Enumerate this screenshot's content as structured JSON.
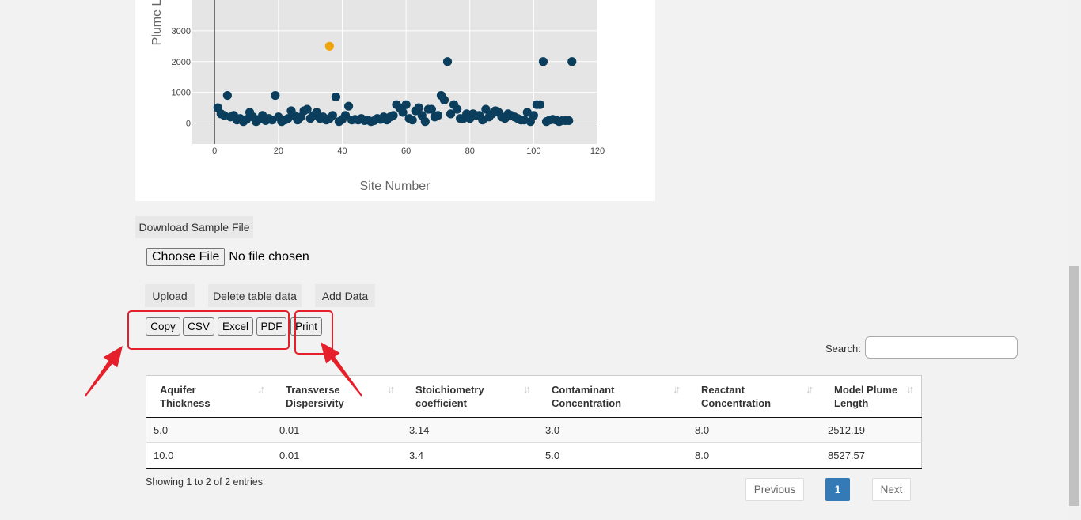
{
  "chart_data": {
    "type": "scatter",
    "title": "",
    "xlabel": "Site Number",
    "ylabel": "Plume L",
    "xlim": [
      -7,
      120
    ],
    "ylim": [
      -680,
      4000
    ],
    "x_ticks": [
      0,
      20,
      40,
      60,
      80,
      100,
      120
    ],
    "y_ticks": [
      0,
      1000,
      2000,
      3000
    ],
    "grid": true,
    "series": [
      {
        "color": "#0a3e5c",
        "points": [
          [
            1,
            500
          ],
          [
            2,
            300
          ],
          [
            3,
            250
          ],
          [
            4,
            900
          ],
          [
            5,
            200
          ],
          [
            6,
            250
          ],
          [
            7,
            100
          ],
          [
            8,
            150
          ],
          [
            9,
            50
          ],
          [
            10,
            120
          ],
          [
            11,
            350
          ],
          [
            12,
            200
          ],
          [
            13,
            50
          ],
          [
            14,
            120
          ],
          [
            15,
            250
          ],
          [
            16,
            80
          ],
          [
            17,
            150
          ],
          [
            18,
            100
          ],
          [
            19,
            900
          ],
          [
            20,
            200
          ],
          [
            21,
            50
          ],
          [
            22,
            100
          ],
          [
            23,
            150
          ],
          [
            24,
            400
          ],
          [
            25,
            250
          ],
          [
            26,
            100
          ],
          [
            27,
            200
          ],
          [
            28,
            400
          ],
          [
            29,
            450
          ],
          [
            30,
            150
          ],
          [
            31,
            250
          ],
          [
            32,
            350
          ],
          [
            33,
            150
          ],
          [
            34,
            200
          ],
          [
            35,
            100
          ],
          [
            36,
            150
          ],
          [
            37,
            250
          ],
          [
            38,
            850
          ],
          [
            39,
            50
          ],
          [
            40,
            120
          ],
          [
            41,
            250
          ],
          [
            42,
            550
          ],
          [
            43,
            100
          ],
          [
            44,
            120
          ],
          [
            45,
            100
          ],
          [
            46,
            150
          ],
          [
            47,
            80
          ],
          [
            48,
            100
          ],
          [
            49,
            50
          ],
          [
            50,
            80
          ],
          [
            51,
            150
          ],
          [
            52,
            120
          ],
          [
            53,
            200
          ],
          [
            54,
            100
          ],
          [
            55,
            200
          ],
          [
            56,
            250
          ],
          [
            57,
            600
          ],
          [
            58,
            500
          ],
          [
            59,
            350
          ],
          [
            60,
            600
          ],
          [
            61,
            150
          ],
          [
            62,
            100
          ],
          [
            63,
            400
          ],
          [
            64,
            500
          ],
          [
            65,
            250
          ],
          [
            66,
            50
          ],
          [
            67,
            450
          ],
          [
            68,
            450
          ],
          [
            69,
            200
          ],
          [
            70,
            250
          ],
          [
            71,
            900
          ],
          [
            72,
            750
          ],
          [
            73,
            2000
          ],
          [
            74,
            300
          ],
          [
            75,
            600
          ],
          [
            76,
            450
          ],
          [
            77,
            150
          ],
          [
            78,
            150
          ],
          [
            79,
            300
          ],
          [
            80,
            150
          ],
          [
            81,
            300
          ],
          [
            82,
            250
          ],
          [
            83,
            250
          ],
          [
            84,
            100
          ],
          [
            85,
            450
          ],
          [
            86,
            200
          ],
          [
            87,
            300
          ],
          [
            88,
            400
          ],
          [
            89,
            350
          ],
          [
            90,
            200
          ],
          [
            91,
            150
          ],
          [
            92,
            300
          ],
          [
            93,
            250
          ],
          [
            94,
            200
          ],
          [
            95,
            150
          ],
          [
            96,
            100
          ],
          [
            97,
            100
          ],
          [
            98,
            350
          ],
          [
            99,
            50
          ],
          [
            100,
            250
          ],
          [
            101,
            600
          ],
          [
            102,
            600
          ],
          [
            103,
            2000
          ],
          [
            104,
            50
          ],
          [
            105,
            100
          ],
          [
            106,
            120
          ],
          [
            107,
            100
          ],
          [
            108,
            50
          ],
          [
            109,
            80
          ],
          [
            110,
            80
          ],
          [
            111,
            80
          ],
          [
            112,
            2000
          ]
        ]
      },
      {
        "color": "#f0a30a",
        "points": [
          [
            36,
            2500
          ]
        ]
      }
    ]
  },
  "controls": {
    "download_sample": "Download Sample File",
    "choose_file": "Choose File",
    "file_status": "No file chosen",
    "upload": "Upload",
    "delete_table": "Delete table data",
    "add_data": "Add Data"
  },
  "export_buttons": [
    "Copy",
    "CSV",
    "Excel",
    "PDF",
    "Print"
  ],
  "search": {
    "label": "Search:",
    "value": ""
  },
  "table": {
    "headers": [
      [
        "Aquifer",
        "Thickness"
      ],
      [
        "Transverse",
        "Dispersivity"
      ],
      [
        "Stoichiometry",
        "coefficient"
      ],
      [
        "Contaminant",
        "Concentration"
      ],
      [
        "Reactant",
        "Concentration"
      ],
      [
        "Model Plume",
        "Length"
      ]
    ],
    "rows": [
      [
        "5.0",
        "0.01",
        "3.14",
        "3.0",
        "8.0",
        "2512.19"
      ],
      [
        "10.0",
        "0.01",
        "3.4",
        "5.0",
        "8.0",
        "8527.57"
      ]
    ]
  },
  "info": "Showing 1 to 2 of 2 entries",
  "pagination": {
    "previous": "Previous",
    "page": "1",
    "next": "Next"
  },
  "annotation_color": "#e5202a"
}
